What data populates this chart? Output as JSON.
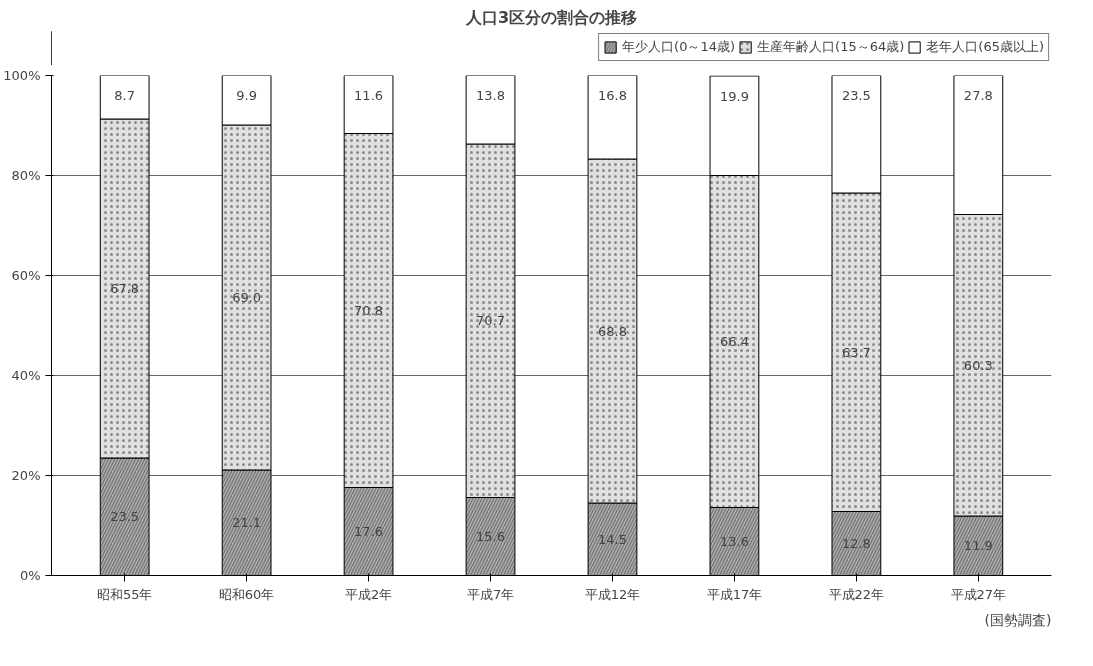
{
  "chart_data": {
    "type": "bar",
    "stacked": true,
    "title": "人口3区分の割合の推移",
    "categories": [
      "昭和55年",
      "昭和60年",
      "平成2年",
      "平成7年",
      "平成12年",
      "平成17年",
      "平成22年",
      "平成27年"
    ],
    "series": [
      {
        "name": "年少人口(0～14歳)",
        "color": "#a6a6a6",
        "values": [
          23.5,
          21.1,
          17.6,
          15.6,
          14.5,
          13.6,
          12.8,
          11.9
        ],
        "value_labels": [
          "23.5",
          "21.1",
          "17.6",
          "15.6",
          "14.5",
          "13.6",
          "12.8",
          "11.9"
        ]
      },
      {
        "name": "生産年齢人口(15～64歳)",
        "color": "#e0e0e0",
        "values": [
          67.8,
          69.0,
          70.8,
          70.7,
          68.8,
          66.4,
          63.7,
          60.3
        ],
        "value_labels": [
          "67.8",
          "69.0",
          "70.8",
          "70.7",
          "68.8",
          "66.4",
          "63.7",
          "60.3"
        ]
      },
      {
        "name": "老年人口(65歳以上)",
        "color": "#ffffff",
        "values": [
          8.7,
          9.9,
          11.6,
          13.8,
          16.8,
          19.9,
          23.5,
          27.8
        ],
        "value_labels": [
          "8.7",
          "9.9",
          "11.6",
          "13.8",
          "16.8",
          "19.9",
          "23.5",
          "27.8"
        ]
      }
    ],
    "ylim": [
      0,
      100
    ],
    "yticks": [
      {
        "value": 0,
        "label": "0%"
      },
      {
        "value": 20,
        "label": "20%"
      },
      {
        "value": 40,
        "label": "40%"
      },
      {
        "value": 60,
        "label": "60%"
      },
      {
        "value": 80,
        "label": "80%"
      },
      {
        "value": 100,
        "label": "100%"
      }
    ],
    "grid": "y",
    "legend": "top right",
    "annotations": [
      "(国勢調査)"
    ]
  }
}
